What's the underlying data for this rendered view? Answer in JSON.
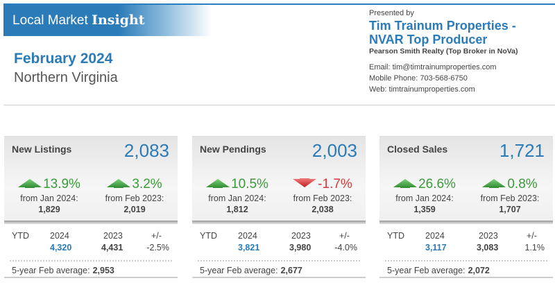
{
  "header": {
    "brand_prefix": "Local Market",
    "brand_bold": "Insight",
    "month": "February 2024",
    "region": "Northern Virginia"
  },
  "presenter": {
    "presented_by": "Presented by",
    "agent_line1": "Tim Trainum Properties -",
    "agent_line2": "NVAR Top Producer",
    "broker": "Pearson Smith Realty (Top Broker in NoVa)",
    "email": "Email: tim@timtrainumproperties.com",
    "phone": "Mobile Phone: 703-568-6750",
    "web": "Web: timtrainumproperties.com"
  },
  "colors": {
    "accent": "#2a7bb8",
    "up": "#3a9a3a",
    "down": "#d43a3a"
  },
  "cards": [
    {
      "title": "New Listings",
      "value": "2,083",
      "mom": {
        "dir": "up",
        "pct": "13.9%",
        "from": "from Jan 2024:",
        "val": "1,829"
      },
      "yoy": {
        "dir": "up",
        "pct": "3.2%",
        "from": "from Feb 2023:",
        "val": "2,019"
      },
      "ytd": {
        "label": "YTD",
        "y1": "2024",
        "y2": "2023",
        "pm": "+/-",
        "v1": "4,320",
        "v2": "4,431",
        "chg": "-2.5%"
      },
      "avg_label": "5-year Feb average:",
      "avg": "2,953"
    },
    {
      "title": "New Pendings",
      "value": "2,003",
      "mom": {
        "dir": "up",
        "pct": "10.5%",
        "from": "from Jan 2024:",
        "val": "1,812"
      },
      "yoy": {
        "dir": "down",
        "pct": "-1.7%",
        "from": "from Feb 2023:",
        "val": "2,038"
      },
      "ytd": {
        "label": "YTD",
        "y1": "2024",
        "y2": "2023",
        "pm": "+/-",
        "v1": "3,821",
        "v2": "3,980",
        "chg": "-4.0%"
      },
      "avg_label": "5-year Feb average:",
      "avg": "2,677"
    },
    {
      "title": "Closed Sales",
      "value": "1,721",
      "mom": {
        "dir": "up",
        "pct": "26.6%",
        "from": "from Jan 2024:",
        "val": "1,359"
      },
      "yoy": {
        "dir": "up",
        "pct": "0.8%",
        "from": "from Feb 2023:",
        "val": "1,707"
      },
      "ytd": {
        "label": "YTD",
        "y1": "2024",
        "y2": "2023",
        "pm": "+/-",
        "v1": "3,117",
        "v2": "3,083",
        "chg": "1.1%"
      },
      "avg_label": "5-year Feb average:",
      "avg": "2,072"
    }
  ]
}
